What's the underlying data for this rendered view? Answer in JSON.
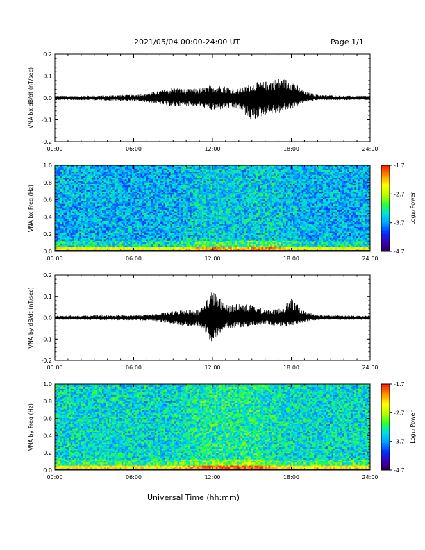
{
  "header": {
    "title": "2021/05/04  00:00-24:00 UT",
    "page": "Page 1/1"
  },
  "colors": {
    "line": "#000000",
    "colormap": [
      "#2a0050",
      "#3a00b0",
      "#0030ff",
      "#00a0ff",
      "#00e0e0",
      "#30ff30",
      "#c0ff00",
      "#ffff00",
      "#ff9000",
      "#ff2000"
    ]
  },
  "chart_data": [
    {
      "type": "line",
      "panel": "bx-time-series",
      "ylabel": "VNA bx dB/dt (nT/sec)",
      "xlabel": "",
      "xlim": [
        0,
        24
      ],
      "ylim": [
        -0.2,
        0.2
      ],
      "x_ticks": [
        "00:00",
        "06:00",
        "12:00",
        "18:00",
        "24:00"
      ],
      "y_ticks": [
        "-0.2",
        "-0.1",
        "0.0",
        "0.1",
        "0.2"
      ],
      "envelope": {
        "hours": [
          0,
          2,
          4,
          6,
          7,
          8,
          9,
          10,
          11,
          12,
          13,
          14,
          15,
          16,
          17,
          18,
          19,
          20,
          22,
          24
        ],
        "max": [
          0.01,
          0.01,
          0.012,
          0.015,
          0.02,
          0.035,
          0.05,
          0.04,
          0.045,
          0.06,
          0.055,
          0.04,
          0.07,
          0.075,
          0.09,
          0.085,
          0.03,
          0.015,
          0.01,
          0.01
        ],
        "min": [
          -0.01,
          -0.01,
          -0.012,
          -0.015,
          -0.02,
          -0.03,
          -0.04,
          -0.035,
          -0.04,
          -0.06,
          -0.05,
          -0.05,
          -0.11,
          -0.08,
          -0.07,
          -0.05,
          -0.02,
          -0.01,
          -0.01,
          -0.01
        ]
      }
    },
    {
      "type": "heatmap",
      "panel": "bx-spectrogram",
      "ylabel": "VNA bx Freq (Hz)",
      "xlim": [
        0,
        24
      ],
      "ylim": [
        0.0,
        1.0
      ],
      "x_ticks": [
        "00:00",
        "06:00",
        "12:00",
        "18:00",
        "24:00"
      ],
      "y_ticks": [
        "0.0",
        "0.2",
        "0.4",
        "0.6",
        "0.8",
        "1.0"
      ],
      "colorbar": {
        "label": "Log₁₀ Power",
        "ticks": [
          "-1.7",
          "-2.7",
          "-3.7",
          "-4.7"
        ],
        "range": [
          -4.7,
          -1.7
        ]
      },
      "background_level": -3.6,
      "low_freq_band_level": -2.6,
      "peak_hours": [
        12,
        16
      ]
    },
    {
      "type": "line",
      "panel": "by-time-series",
      "ylabel": "VNA by dB/dt (nT/sec)",
      "xlabel": "",
      "xlim": [
        0,
        24
      ],
      "ylim": [
        -0.2,
        0.2
      ],
      "x_ticks": [
        "00:00",
        "06:00",
        "12:00",
        "18:00",
        "24:00"
      ],
      "y_ticks": [
        "-0.2",
        "-0.1",
        "0.0",
        "0.1",
        "0.2"
      ],
      "envelope": {
        "hours": [
          0,
          2,
          4,
          6,
          7,
          8,
          9,
          10,
          11,
          12,
          13,
          14,
          15,
          16,
          17,
          18,
          19,
          20,
          22,
          24
        ],
        "max": [
          0.01,
          0.01,
          0.012,
          0.012,
          0.015,
          0.02,
          0.03,
          0.04,
          0.035,
          0.13,
          0.06,
          0.07,
          0.06,
          0.04,
          0.04,
          0.09,
          0.03,
          0.015,
          0.01,
          0.01
        ],
        "min": [
          -0.01,
          -0.01,
          -0.012,
          -0.012,
          -0.015,
          -0.02,
          -0.03,
          -0.04,
          -0.04,
          -0.12,
          -0.05,
          -0.05,
          -0.04,
          -0.03,
          -0.04,
          -0.04,
          -0.02,
          -0.01,
          -0.01,
          -0.01
        ]
      }
    },
    {
      "type": "heatmap",
      "panel": "by-spectrogram",
      "ylabel": "VNA by Freq (Hz)",
      "xlim": [
        0,
        24
      ],
      "ylim": [
        0.0,
        1.0
      ],
      "x_ticks": [
        "00:00",
        "06:00",
        "12:00",
        "18:00",
        "24:00"
      ],
      "y_ticks": [
        "0.0",
        "0.2",
        "0.4",
        "0.6",
        "0.8",
        "1.0"
      ],
      "colorbar": {
        "label": "Log₁₀ Power",
        "ticks": [
          "-1.7",
          "-2.7",
          "-3.7",
          "-4.7"
        ],
        "range": [
          -4.7,
          -1.7
        ]
      },
      "background_level": -3.4,
      "low_freq_band_level": -2.5,
      "peak_hours": [
        12,
        15
      ]
    }
  ],
  "footer": {
    "xlabel": "Universal Time (hh:mm)"
  }
}
